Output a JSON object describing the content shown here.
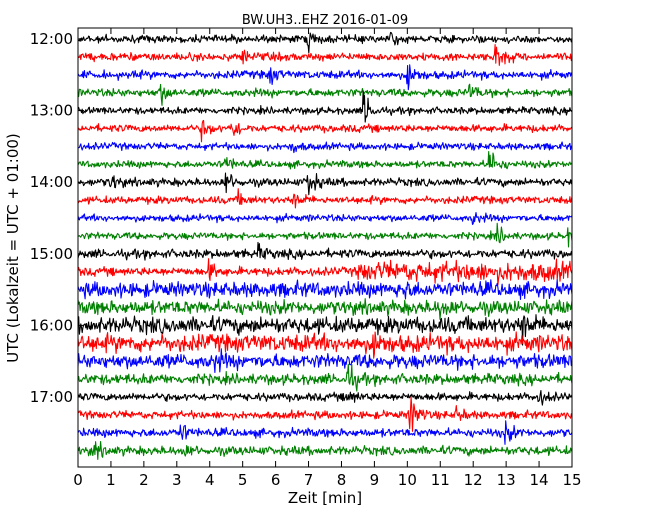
{
  "chart_data": {
    "type": "line",
    "title": "BW.UH3..EHZ 2016-01-09",
    "xlabel": "Zeit  [min]",
    "ylabel": "UTC (Lokalzeit = UTC + 01:00)",
    "xlim": [
      0,
      15
    ],
    "x_ticks": [
      "0",
      "1",
      "2",
      "3",
      "4",
      "5",
      "6",
      "7",
      "8",
      "9",
      "10",
      "11",
      "12",
      "13",
      "14",
      "15"
    ],
    "y_ticks": [
      "12:00",
      "13:00",
      "14:00",
      "15:00",
      "16:00",
      "17:00"
    ],
    "trace_start": "12:00",
    "trace_end": "17:45",
    "trace_interval_min": 15,
    "trace_colors": [
      "#000000",
      "#ff0000",
      "#0000ff",
      "#008000"
    ],
    "grid": false,
    "traces": [
      {
        "start": "12:00",
        "color": "#000000",
        "noise": 0.32,
        "events": [
          {
            "t": 7.0,
            "amp": 0.7
          },
          {
            "t": 9.5,
            "amp": 0.5
          }
        ]
      },
      {
        "start": "12:15",
        "color": "#ff0000",
        "noise": 0.34,
        "events": [
          {
            "t": 12.7,
            "amp": 1.4
          },
          {
            "t": 5.0,
            "amp": 0.5
          }
        ]
      },
      {
        "start": "12:30",
        "color": "#0000ff",
        "noise": 0.34,
        "events": [
          {
            "t": 10.0,
            "amp": 1.3
          },
          {
            "t": 5.8,
            "amp": 0.8
          }
        ]
      },
      {
        "start": "12:45",
        "color": "#008000",
        "noise": 0.34,
        "events": [
          {
            "t": 2.5,
            "amp": 0.9
          },
          {
            "t": 11.9,
            "amp": 0.6
          }
        ]
      },
      {
        "start": "13:00",
        "color": "#000000",
        "noise": 0.3,
        "events": [
          {
            "t": 8.7,
            "amp": 1.5
          }
        ]
      },
      {
        "start": "13:15",
        "color": "#ff0000",
        "noise": 0.32,
        "events": [
          {
            "t": 3.8,
            "amp": 0.7
          },
          {
            "t": 4.7,
            "amp": 0.8
          }
        ]
      },
      {
        "start": "13:30",
        "color": "#0000ff",
        "noise": 0.3,
        "events": [
          {
            "t": 6.5,
            "amp": 0.5
          }
        ]
      },
      {
        "start": "13:45",
        "color": "#008000",
        "noise": 0.3,
        "events": [
          {
            "t": 12.5,
            "amp": 1.3
          },
          {
            "t": 4.5,
            "amp": 0.6
          }
        ]
      },
      {
        "start": "14:00",
        "color": "#000000",
        "noise": 0.34,
        "events": [
          {
            "t": 7.0,
            "amp": 1.3
          },
          {
            "t": 4.5,
            "amp": 0.9
          },
          {
            "t": 1.0,
            "amp": 0.6
          }
        ]
      },
      {
        "start": "14:15",
        "color": "#ff0000",
        "noise": 0.32,
        "events": [
          {
            "t": 6.6,
            "amp": 0.6
          },
          {
            "t": 4.9,
            "amp": 0.5
          }
        ]
      },
      {
        "start": "14:30",
        "color": "#0000ff",
        "noise": 0.3,
        "events": [
          {
            "t": 12.0,
            "amp": 0.5
          }
        ]
      },
      {
        "start": "14:45",
        "color": "#008000",
        "noise": 0.3,
        "events": [
          {
            "t": 12.7,
            "amp": 0.9
          },
          {
            "t": 14.9,
            "amp": 0.6
          }
        ]
      },
      {
        "start": "15:00",
        "color": "#000000",
        "noise": 0.38,
        "events": [
          {
            "t": 5.5,
            "amp": 0.5
          }
        ]
      },
      {
        "start": "15:15",
        "color": "#ff0000",
        "noise": 0.36,
        "events": [
          {
            "t": 4.0,
            "amp": 0.7
          }
        ],
        "noisy_from": 8.5,
        "noisy_scale": 2.4
      },
      {
        "start": "15:30",
        "color": "#0000ff",
        "noise": 0.65,
        "events": [
          {
            "t": 9.8,
            "amp": 0.7
          }
        ]
      },
      {
        "start": "15:45",
        "color": "#008000",
        "noise": 0.6,
        "events": [
          {
            "t": 11.0,
            "amp": 0.6
          }
        ]
      },
      {
        "start": "16:00",
        "color": "#000000",
        "noise": 0.7,
        "events": [
          {
            "t": 13.5,
            "amp": 1.0
          }
        ]
      },
      {
        "start": "16:15",
        "color": "#ff0000",
        "noise": 0.75,
        "events": [
          {
            "t": 9.0,
            "amp": 0.7
          }
        ]
      },
      {
        "start": "16:30",
        "color": "#0000ff",
        "noise": 0.62,
        "events": [
          {
            "t": 4.2,
            "amp": 0.6
          }
        ]
      },
      {
        "start": "16:45",
        "color": "#008000",
        "noise": 0.45,
        "events": [
          {
            "t": 8.2,
            "amp": 1.3
          }
        ]
      },
      {
        "start": "17:00",
        "color": "#000000",
        "noise": 0.34,
        "events": [
          {
            "t": 8.2,
            "amp": 0.7
          },
          {
            "t": 14.0,
            "amp": 0.6
          }
        ]
      },
      {
        "start": "17:15",
        "color": "#ff0000",
        "noise": 0.34,
        "events": [
          {
            "t": 10.1,
            "amp": 1.9
          },
          {
            "t": 11.5,
            "amp": 0.6
          }
        ]
      },
      {
        "start": "17:30",
        "color": "#0000ff",
        "noise": 0.36,
        "events": [
          {
            "t": 3.1,
            "amp": 0.9
          },
          {
            "t": 13.0,
            "amp": 0.8
          }
        ]
      },
      {
        "start": "17:45",
        "color": "#008000",
        "noise": 0.38,
        "events": [
          {
            "t": 0.5,
            "amp": 0.7
          },
          {
            "t": 3.2,
            "amp": 0.5
          }
        ]
      }
    ]
  }
}
